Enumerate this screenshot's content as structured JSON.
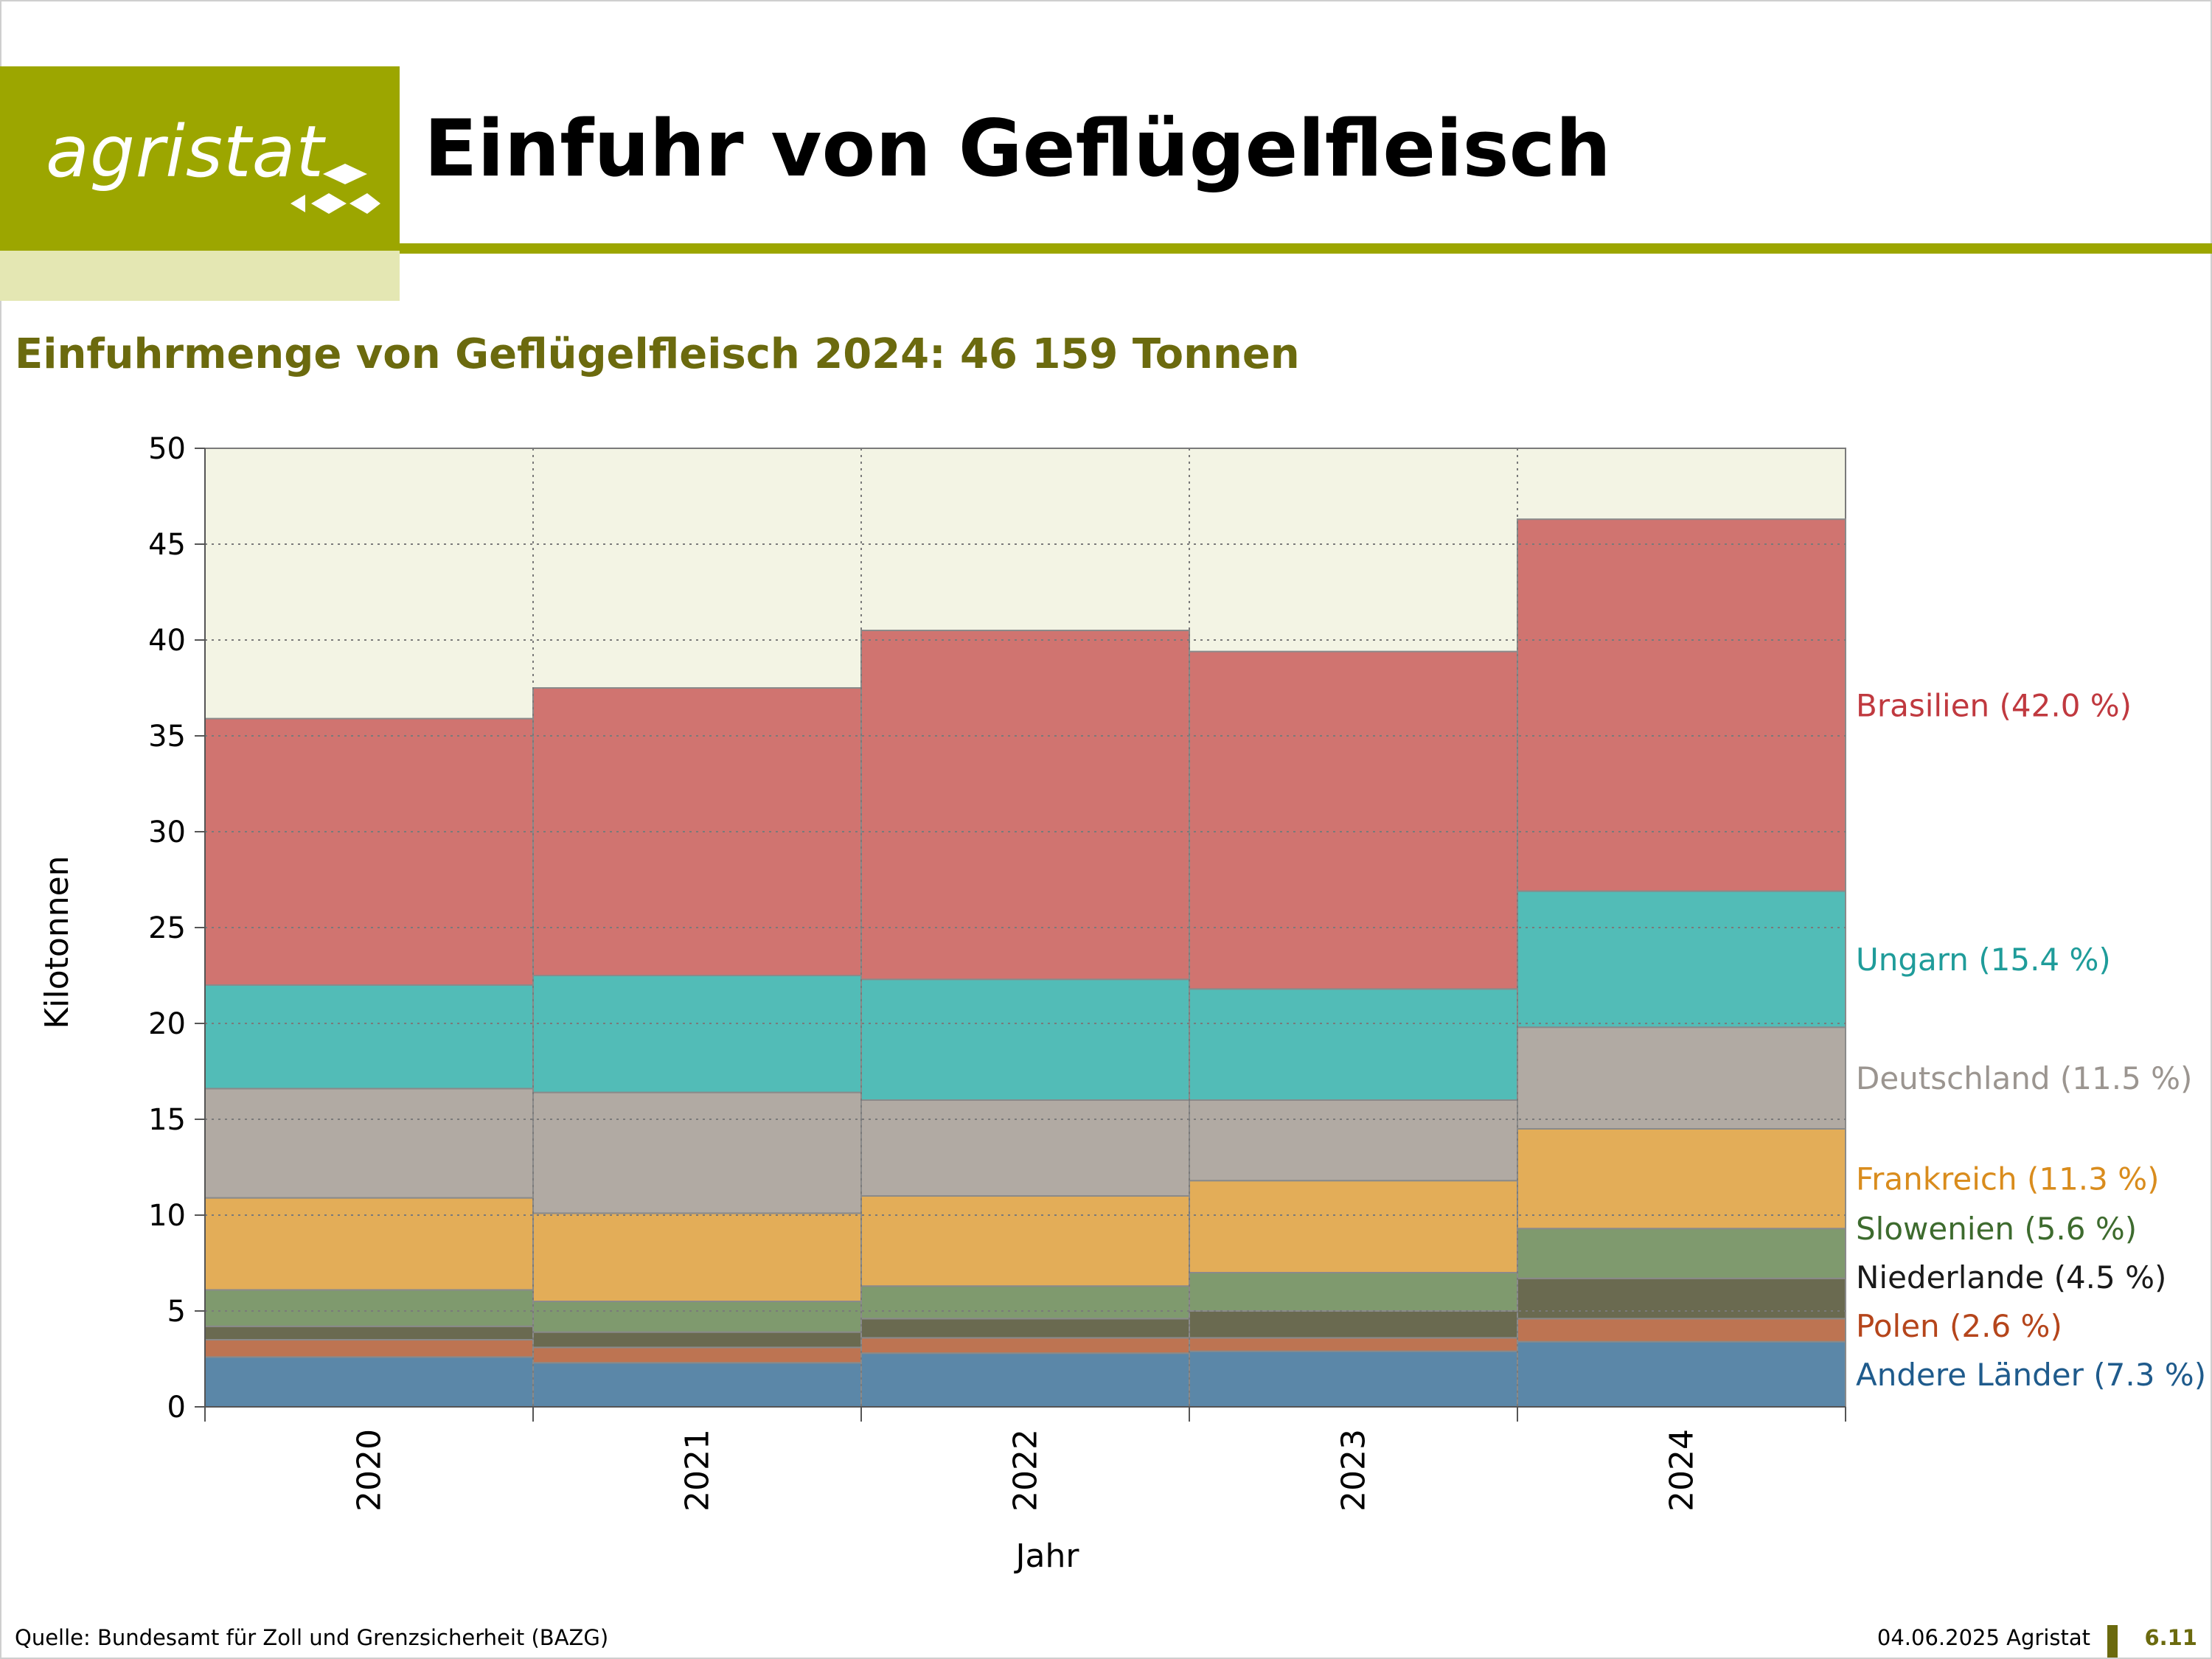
{
  "header": {
    "logo_text": "agristat",
    "title": "Einfuhr von Geflügelfleisch"
  },
  "subtitle": "Einfuhrmenge von Geflügelfleisch 2024: 46 159 Tonnen",
  "colors": {
    "brand": "#9ca600",
    "brand_light": "#e4e7b3",
    "subtitle": "#6b6a0e",
    "plot_bg": "#f3f4e4"
  },
  "chart_data": {
    "type": "bar",
    "stacked": true,
    "categories": [
      "2020",
      "2021",
      "2022",
      "2023",
      "2024"
    ],
    "xlabel": "Jahr",
    "ylabel": "Kilotonnen",
    "ylim": [
      0,
      50
    ],
    "yticks": [
      0,
      5,
      10,
      15,
      20,
      25,
      30,
      35,
      40,
      45,
      50
    ],
    "grid": true,
    "legend_placement": "right, labels next to 2024 bar",
    "series": [
      {
        "name": "Andere Länder",
        "label": "Andere Länder (7.3 %)",
        "color": "#5b87a8",
        "label_color": "#1f5b8c",
        "values": [
          2.6,
          2.3,
          2.8,
          2.9,
          3.4
        ]
      },
      {
        "name": "Polen",
        "label": "Polen (2.6 %)",
        "color": "#bd7452",
        "label_color": "#b5451b",
        "values": [
          0.9,
          0.8,
          0.8,
          0.7,
          1.2
        ]
      },
      {
        "name": "Niederlande",
        "label": "Niederlande (4.5 %)",
        "color": "#6a6a50",
        "label_color": "#1a1a1a",
        "values": [
          0.7,
          0.8,
          1.0,
          1.4,
          2.1
        ]
      },
      {
        "name": "Slowenien",
        "label": "Slowenien (5.6 %)",
        "color": "#7f9a6e",
        "label_color": "#3d6b2e",
        "values": [
          1.9,
          1.6,
          1.7,
          2.0,
          2.6
        ]
      },
      {
        "name": "Frankreich",
        "label": "Frankreich (11.3 %)",
        "color": "#e3ad58",
        "label_color": "#d98c1d",
        "values": [
          4.8,
          4.6,
          4.7,
          4.8,
          5.2
        ]
      },
      {
        "name": "Deutschland",
        "label": "Deutschland (11.5 %)",
        "color": "#b1aaa3",
        "label_color": "#9b9590",
        "values": [
          5.7,
          6.3,
          5.0,
          4.2,
          5.3
        ]
      },
      {
        "name": "Ungarn",
        "label": "Ungarn (15.4 %)",
        "color": "#52bcb7",
        "label_color": "#1f9c9a",
        "values": [
          5.4,
          6.1,
          6.3,
          5.8,
          7.1
        ]
      },
      {
        "name": "Brasilien",
        "label": "Brasilien (42.0 %)",
        "color": "#d07470",
        "label_color": "#c0393f",
        "values": [
          13.9,
          15.0,
          18.2,
          17.6,
          19.4
        ]
      }
    ]
  },
  "footer": {
    "source": "Quelle: Bundesamt für Zoll und Grenzsicherheit (BAZG)",
    "date": "04.06.2025 Agristat",
    "page": "6.11"
  }
}
